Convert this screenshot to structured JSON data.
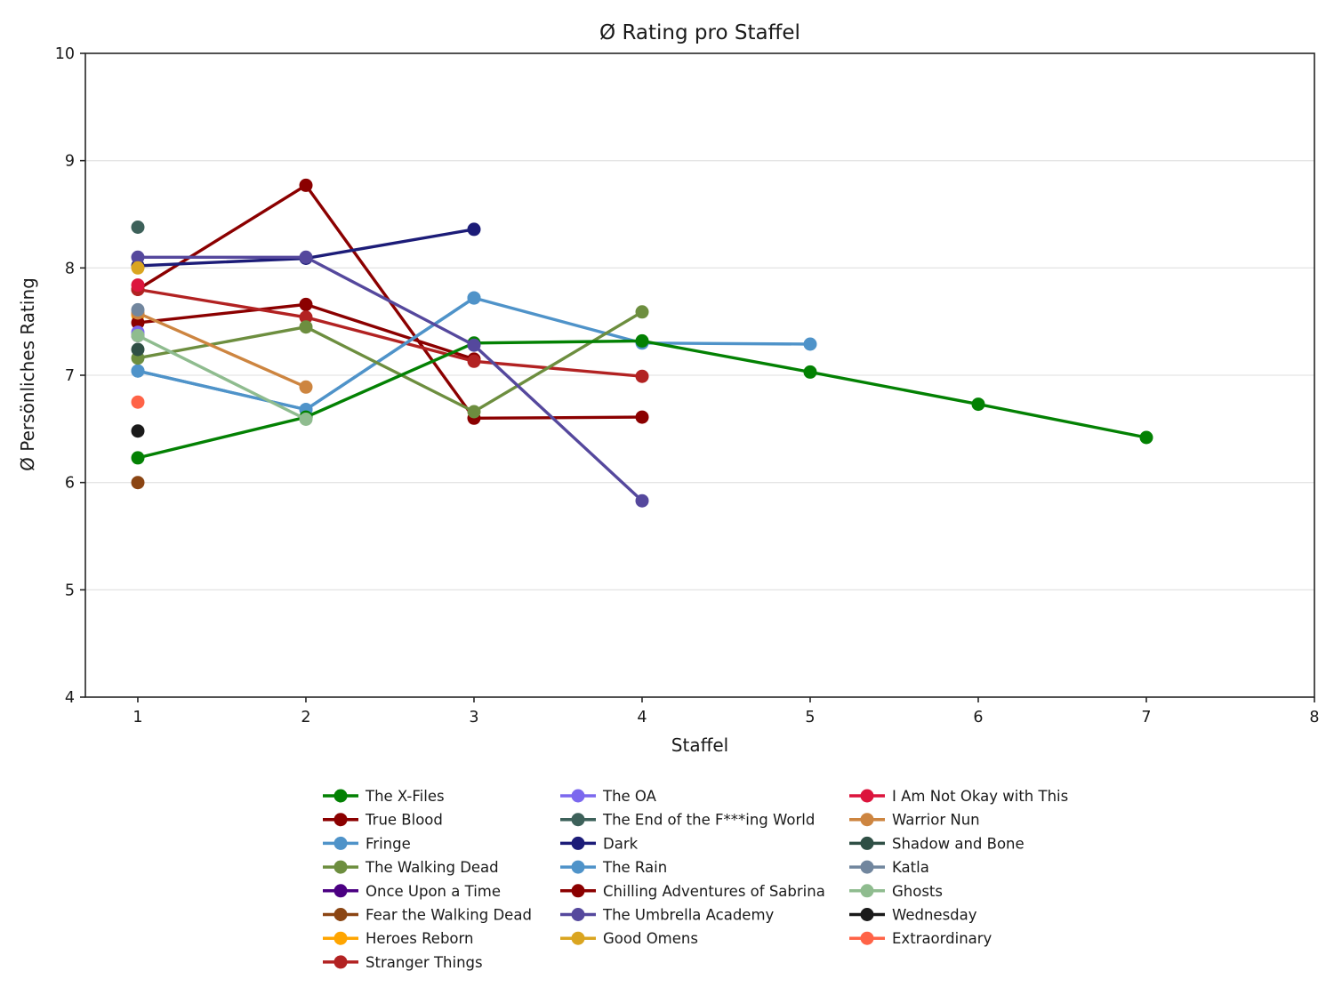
{
  "chart_data": {
    "type": "line",
    "title": "Ø Rating pro Staffel",
    "xlabel": "Staffel",
    "ylabel": "Ø Persönliches Rating",
    "x_ticks": [
      1,
      2,
      3,
      4,
      5,
      6,
      7,
      8
    ],
    "y_ticks": [
      4,
      5,
      6,
      7,
      8,
      9,
      10
    ],
    "xlim": [
      0.688,
      8
    ],
    "ylim": [
      4,
      10
    ],
    "grid": "horizontal-only",
    "grid_color": "#e5e5e5",
    "axis_color": "#262626",
    "text_color": "#1a1a1a",
    "background": "#ffffff",
    "legend_position": "bottom-3-columns",
    "legend_columns": [
      8,
      7,
      7
    ],
    "series": [
      {
        "name": "The X-Files",
        "color": "#038103",
        "z": 9,
        "points": [
          [
            1,
            6.23
          ],
          [
            2,
            6.61
          ],
          [
            3,
            7.3
          ],
          [
            4,
            7.32
          ],
          [
            5,
            7.03
          ],
          [
            6,
            6.73
          ],
          [
            7,
            6.42
          ]
        ]
      },
      {
        "name": "True Blood",
        "color": "#8b0000",
        "z": 3,
        "points": [
          [
            1,
            7.8
          ],
          [
            2,
            8.77
          ],
          [
            3,
            6.6
          ],
          [
            4,
            6.61
          ]
        ]
      },
      {
        "name": "Fringe",
        "color": "#4f93c9",
        "z": 7,
        "points": [
          [
            1,
            7.04
          ],
          [
            2,
            6.68
          ],
          [
            3,
            7.72
          ],
          [
            4,
            7.3
          ],
          [
            5,
            7.29
          ]
        ]
      },
      {
        "name": "The Walking Dead",
        "color": "#6d8e3f",
        "z": 8,
        "points": [
          [
            1,
            7.16
          ],
          [
            2,
            7.45
          ],
          [
            3,
            6.66
          ],
          [
            4,
            7.59
          ]
        ]
      },
      {
        "name": "Once Upon a Time",
        "color": "#4b0082",
        "z": 1,
        "points": [
          [
            1,
            7.37
          ]
        ]
      },
      {
        "name": "Fear the Walking Dead",
        "color": "#8b4513",
        "z": 22,
        "points": [
          [
            1,
            6.0
          ]
        ]
      },
      {
        "name": "Heroes Reborn",
        "color": "#ffa500",
        "z": 2,
        "points": [
          [
            1,
            7.56
          ]
        ]
      },
      {
        "name": "Stranger Things",
        "color": "#b22222",
        "z": 5,
        "points": [
          [
            1,
            7.8
          ],
          [
            2,
            7.54
          ],
          [
            3,
            7.13
          ],
          [
            4,
            6.99
          ]
        ]
      },
      {
        "name": "The OA",
        "color": "#7b68ee",
        "z": 11,
        "points": [
          [
            1,
            7.4
          ]
        ]
      },
      {
        "name": "The End of the F***ing World",
        "color": "#3d615a",
        "z": 16,
        "points": [
          [
            1,
            8.38
          ]
        ]
      },
      {
        "name": "Dark",
        "color": "#1c1c78",
        "z": 10,
        "points": [
          [
            1,
            8.02
          ],
          [
            2,
            8.09
          ],
          [
            3,
            8.36
          ]
        ]
      },
      {
        "name": "The Rain",
        "color": "#4f93c9",
        "z": 6,
        "points": [
          [
            1,
            7.04
          ],
          [
            2,
            6.68
          ],
          [
            3,
            7.72
          ]
        ]
      },
      {
        "name": "Chilling Adventures of Sabrina",
        "color": "#8b0000",
        "z": 4,
        "points": [
          [
            1,
            7.49
          ],
          [
            2,
            7.66
          ],
          [
            3,
            7.15
          ]
        ]
      },
      {
        "name": "The Umbrella Academy",
        "color": "#55489d",
        "z": 13,
        "points": [
          [
            1,
            8.1
          ],
          [
            2,
            8.1
          ],
          [
            3,
            7.28
          ],
          [
            4,
            5.83
          ]
        ]
      },
      {
        "name": "Good Omens",
        "color": "#daa520",
        "z": 15,
        "points": [
          [
            1,
            8.0
          ]
        ]
      },
      {
        "name": "I Am Not Okay with This",
        "color": "#dc143c",
        "z": 19,
        "points": [
          [
            1,
            7.84
          ]
        ]
      },
      {
        "name": "Warrior Nun",
        "color": "#cd8540",
        "z": 14,
        "points": [
          [
            1,
            7.58
          ],
          [
            2,
            6.89
          ]
        ]
      },
      {
        "name": "Shadow and Bone",
        "color": "#2f4f45",
        "z": 17,
        "points": [
          [
            1,
            7.24
          ]
        ]
      },
      {
        "name": "Katla",
        "color": "#71869e",
        "z": 18,
        "points": [
          [
            1,
            7.61
          ]
        ]
      },
      {
        "name": "Ghosts",
        "color": "#8fbc8f",
        "z": 12,
        "points": [
          [
            1,
            7.37
          ],
          [
            2,
            6.59
          ]
        ]
      },
      {
        "name": "Wednesday",
        "color": "#1a1a1a",
        "z": 20,
        "points": [
          [
            1,
            6.48
          ]
        ]
      },
      {
        "name": "Extraordinary",
        "color": "#ff6347",
        "z": 21,
        "points": [
          [
            1,
            6.75
          ]
        ]
      }
    ]
  }
}
